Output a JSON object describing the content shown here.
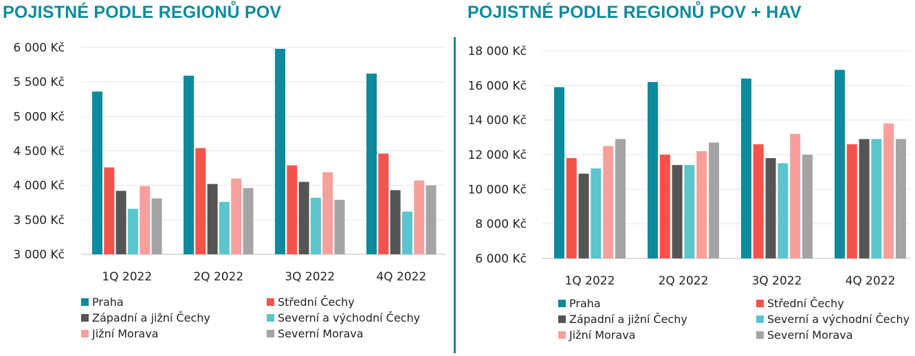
{
  "chart_data": [
    {
      "type": "bar",
      "title": "POJISTNÉ PODLE REGIONŮ POV",
      "categories": [
        "1Q 2022",
        "2Q 2022",
        "3Q 2022",
        "4Q 2022"
      ],
      "ylim": [
        3000,
        6000
      ],
      "yticks": [
        3000,
        3500,
        4000,
        4500,
        5000,
        5500,
        6000
      ],
      "ytick_labels": [
        "3 000 Kč",
        "3 500 Kč",
        "4 000 Kč",
        "4 500 Kč",
        "5 000 Kč",
        "5 500 Kč",
        "6 000 Kč"
      ],
      "grid": true,
      "legend_position": "bottom",
      "series": [
        {
          "name": "Praha",
          "color": "#0d8a9c",
          "values": [
            5360,
            5590,
            5980,
            5620
          ]
        },
        {
          "name": "Střední Čechy",
          "color": "#f2534a",
          "values": [
            4260,
            4540,
            4290,
            4460
          ]
        },
        {
          "name": "Západní a jižní Čechy",
          "color": "#555555",
          "values": [
            3920,
            4020,
            4050,
            3930
          ]
        },
        {
          "name": "Severní a východní Čechy",
          "color": "#5bc4cc",
          "values": [
            3660,
            3760,
            3820,
            3620
          ]
        },
        {
          "name": "Jižní Morava",
          "color": "#f7a09b",
          "values": [
            3990,
            4100,
            4190,
            4070
          ]
        },
        {
          "name": "Severní Morava",
          "color": "#a4a4a4",
          "values": [
            3810,
            3960,
            3790,
            4000
          ]
        }
      ]
    },
    {
      "type": "bar",
      "title": "POJISTNÉ PODLE REGIONŮ POV + HAV",
      "categories": [
        "1Q 2022",
        "2Q 2022",
        "3Q 2022",
        "4Q 2022"
      ],
      "ylim": [
        6000,
        18000
      ],
      "yticks": [
        6000,
        8000,
        10000,
        12000,
        14000,
        16000,
        18000
      ],
      "ytick_labels": [
        "6 000 Kč",
        "8 000 Kč",
        "10 000 Kč",
        "12 000 Kč",
        "14 000 Kč",
        "16 000 Kč",
        "18 000 Kč"
      ],
      "grid": true,
      "legend_position": "bottom",
      "series": [
        {
          "name": "Praha",
          "color": "#0d8a9c",
          "values": [
            15900,
            16200,
            16400,
            16900
          ]
        },
        {
          "name": "Střední Čechy",
          "color": "#f2534a",
          "values": [
            11800,
            12000,
            12600,
            12600
          ]
        },
        {
          "name": "Západní a jižní Čechy",
          "color": "#555555",
          "values": [
            10900,
            11400,
            11800,
            12900
          ]
        },
        {
          "name": "Severní a východní Čechy",
          "color": "#5bc4cc",
          "values": [
            11200,
            11400,
            11500,
            12900
          ]
        },
        {
          "name": "Jižní Morava",
          "color": "#f7a09b",
          "values": [
            12500,
            12200,
            13200,
            13800
          ]
        },
        {
          "name": "Severní Morava",
          "color": "#a4a4a4",
          "values": [
            12900,
            12700,
            12000,
            12900
          ]
        }
      ]
    }
  ]
}
